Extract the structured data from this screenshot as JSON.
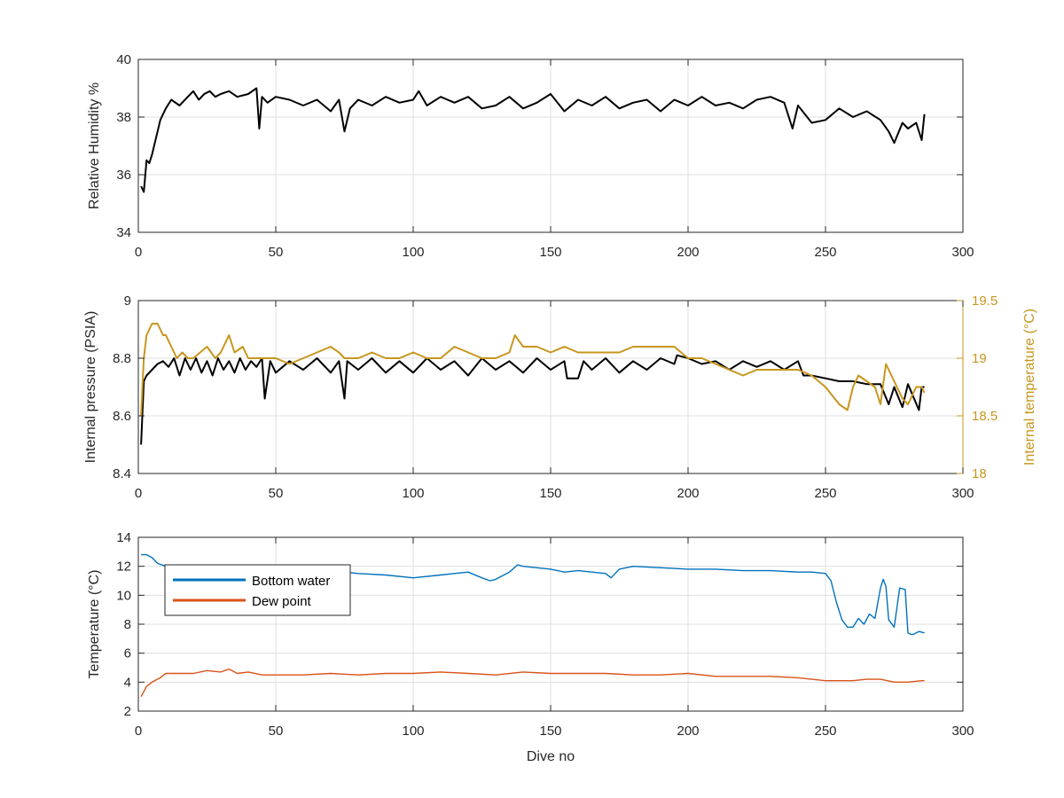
{
  "chart_data": [
    {
      "type": "line",
      "xlabel": "",
      "ylabel": "Relative Humidity %",
      "xlim": [
        0,
        300
      ],
      "ylim": [
        34,
        40
      ],
      "xticks": [
        0,
        50,
        100,
        150,
        200,
        250,
        300
      ],
      "yticks": [
        34,
        36,
        38,
        40
      ],
      "grid": true,
      "series": [
        {
          "color": "#000000",
          "x": [
            1,
            2,
            3,
            4,
            5,
            6,
            7,
            8,
            10,
            12,
            15,
            18,
            20,
            22,
            24,
            26,
            28,
            30,
            33,
            36,
            40,
            43,
            44,
            45,
            47,
            50,
            55,
            60,
            65,
            70,
            73,
            75,
            77,
            80,
            85,
            90,
            95,
            100,
            102,
            105,
            110,
            115,
            120,
            125,
            130,
            135,
            140,
            145,
            150,
            155,
            160,
            165,
            170,
            175,
            180,
            185,
            190,
            195,
            200,
            205,
            210,
            215,
            220,
            225,
            230,
            235,
            238,
            240,
            245,
            250,
            255,
            260,
            265,
            270,
            273,
            275,
            278,
            280,
            283,
            285,
            286
          ],
          "y": [
            35.6,
            35.4,
            36.5,
            36.4,
            36.7,
            37.1,
            37.5,
            37.9,
            38.3,
            38.6,
            38.4,
            38.7,
            38.9,
            38.6,
            38.8,
            38.9,
            38.7,
            38.8,
            38.9,
            38.7,
            38.8,
            39.0,
            37.6,
            38.7,
            38.5,
            38.7,
            38.6,
            38.4,
            38.6,
            38.2,
            38.6,
            37.5,
            38.3,
            38.6,
            38.4,
            38.7,
            38.5,
            38.6,
            38.9,
            38.4,
            38.7,
            38.5,
            38.7,
            38.3,
            38.4,
            38.7,
            38.3,
            38.5,
            38.8,
            38.2,
            38.6,
            38.4,
            38.7,
            38.3,
            38.5,
            38.6,
            38.2,
            38.6,
            38.4,
            38.7,
            38.4,
            38.5,
            38.3,
            38.6,
            38.7,
            38.5,
            37.6,
            38.4,
            37.8,
            37.9,
            38.3,
            38.0,
            38.2,
            37.9,
            37.5,
            37.1,
            37.8,
            37.6,
            37.8,
            37.2,
            38.1
          ]
        }
      ]
    },
    {
      "type": "line",
      "xlabel": "",
      "ylabel": "Internal pressure (PSIA)",
      "y2label": "Internal temperature (°C)",
      "xlim": [
        0,
        300
      ],
      "ylim": [
        8.4,
        9
      ],
      "y2lim": [
        18,
        19.5
      ],
      "xticks": [
        0,
        50,
        100,
        150,
        200,
        250,
        300
      ],
      "yticks": [
        8.4,
        8.6,
        8.8,
        9
      ],
      "y2ticks": [
        18,
        18.5,
        19,
        19.5
      ],
      "y2ticklabels": [
        "18",
        "18.5",
        "19",
        "19.5"
      ],
      "grid": true,
      "series": [
        {
          "axis": "left",
          "color": "#000000",
          "x": [
            1,
            2,
            3,
            5,
            7,
            9,
            11,
            13,
            15,
            17,
            19,
            21,
            23,
            25,
            27,
            29,
            31,
            33,
            35,
            37,
            39,
            41,
            43,
            45,
            46,
            48,
            50,
            55,
            60,
            65,
            70,
            73,
            75,
            76,
            80,
            85,
            90,
            95,
            100,
            105,
            110,
            115,
            120,
            125,
            130,
            135,
            140,
            145,
            150,
            155,
            156,
            160,
            162,
            165,
            170,
            175,
            180,
            185,
            190,
            195,
            196,
            200,
            205,
            210,
            215,
            220,
            225,
            230,
            235,
            240,
            242,
            245,
            250,
            255,
            260,
            265,
            270,
            273,
            275,
            278,
            280,
            284,
            285,
            286
          ],
          "y": [
            8.5,
            8.72,
            8.74,
            8.76,
            8.78,
            8.79,
            8.77,
            8.8,
            8.74,
            8.8,
            8.76,
            8.8,
            8.75,
            8.79,
            8.74,
            8.8,
            8.76,
            8.79,
            8.75,
            8.8,
            8.76,
            8.79,
            8.77,
            8.8,
            8.66,
            8.79,
            8.75,
            8.79,
            8.76,
            8.8,
            8.75,
            8.79,
            8.66,
            8.79,
            8.76,
            8.8,
            8.75,
            8.79,
            8.75,
            8.8,
            8.76,
            8.79,
            8.74,
            8.8,
            8.76,
            8.79,
            8.75,
            8.8,
            8.76,
            8.79,
            8.73,
            8.73,
            8.79,
            8.76,
            8.8,
            8.75,
            8.79,
            8.76,
            8.8,
            8.78,
            8.81,
            8.8,
            8.78,
            8.79,
            8.76,
            8.79,
            8.77,
            8.79,
            8.76,
            8.79,
            8.74,
            8.74,
            8.73,
            8.72,
            8.72,
            8.71,
            8.71,
            8.64,
            8.7,
            8.63,
            8.71,
            8.62,
            8.7,
            8.7
          ]
        },
        {
          "axis": "right",
          "color": "#c8961e",
          "x": [
            1,
            2,
            3,
            5,
            7,
            9,
            10,
            12,
            14,
            16,
            18,
            20,
            25,
            28,
            30,
            33,
            35,
            38,
            40,
            45,
            50,
            55,
            60,
            65,
            70,
            73,
            75,
            80,
            85,
            90,
            95,
            100,
            105,
            110,
            115,
            120,
            125,
            130,
            135,
            137,
            140,
            145,
            150,
            155,
            160,
            165,
            170,
            175,
            180,
            185,
            190,
            195,
            200,
            205,
            210,
            215,
            220,
            225,
            230,
            235,
            240,
            245,
            250,
            255,
            258,
            260,
            262,
            265,
            268,
            270,
            272,
            275,
            278,
            280,
            283,
            285,
            286
          ],
          "y": [
            18.5,
            19.0,
            19.2,
            19.3,
            19.3,
            19.2,
            19.2,
            19.1,
            19.0,
            19.05,
            19.0,
            19.0,
            19.1,
            19.0,
            19.05,
            19.2,
            19.05,
            19.1,
            19.0,
            19.0,
            19.0,
            18.95,
            19.0,
            19.05,
            19.1,
            19.05,
            19.0,
            19.0,
            19.05,
            19.0,
            19.0,
            19.05,
            19.0,
            19.0,
            19.1,
            19.05,
            19.0,
            19.0,
            19.05,
            19.2,
            19.1,
            19.1,
            19.05,
            19.1,
            19.05,
            19.05,
            19.05,
            19.05,
            19.1,
            19.1,
            19.1,
            19.1,
            19.0,
            19.0,
            18.95,
            18.9,
            18.85,
            18.9,
            18.9,
            18.9,
            18.9,
            18.85,
            18.75,
            18.6,
            18.55,
            18.75,
            18.85,
            18.8,
            18.75,
            18.6,
            18.95,
            18.8,
            18.65,
            18.6,
            18.75,
            18.75,
            18.7
          ]
        }
      ]
    },
    {
      "type": "line",
      "xlabel": "Dive no",
      "ylabel": "Temperature (°C)",
      "xlim": [
        0,
        300
      ],
      "ylim": [
        2,
        14
      ],
      "xticks": [
        0,
        50,
        100,
        150,
        200,
        250,
        300
      ],
      "yticks": [
        2,
        4,
        6,
        8,
        10,
        12,
        14
      ],
      "grid": true,
      "legend": "top-left",
      "series": [
        {
          "name": "Bottom water",
          "color": "#0072bd",
          "x": [
            1,
            3,
            5,
            7,
            10,
            15,
            20,
            30,
            40,
            50,
            60,
            70,
            80,
            90,
            100,
            110,
            115,
            120,
            125,
            128,
            130,
            135,
            138,
            140,
            145,
            150,
            155,
            160,
            165,
            170,
            172,
            175,
            180,
            190,
            200,
            210,
            220,
            230,
            240,
            245,
            250,
            252,
            254,
            256,
            258,
            260,
            262,
            264,
            266,
            268,
            270,
            271,
            272,
            273,
            275,
            277,
            279,
            280,
            281,
            282,
            284,
            286
          ],
          "y": [
            12.8,
            12.8,
            12.6,
            12.2,
            12.0,
            11.9,
            11.8,
            11.7,
            11.7,
            11.6,
            11.5,
            11.7,
            11.5,
            11.4,
            11.2,
            11.4,
            11.5,
            11.6,
            11.2,
            11.0,
            11.1,
            11.6,
            12.1,
            12.0,
            11.9,
            11.8,
            11.6,
            11.7,
            11.6,
            11.5,
            11.2,
            11.8,
            12.0,
            11.9,
            11.8,
            11.8,
            11.7,
            11.7,
            11.6,
            11.6,
            11.5,
            11.0,
            9.5,
            8.3,
            7.8,
            7.8,
            8.4,
            8.0,
            8.7,
            8.4,
            10.5,
            11.1,
            10.6,
            8.3,
            7.8,
            10.5,
            10.4,
            7.4,
            7.3,
            7.3,
            7.5,
            7.4
          ]
        },
        {
          "name": "Dew point",
          "color": "#d95319",
          "x": [
            1,
            3,
            5,
            8,
            10,
            15,
            20,
            25,
            30,
            33,
            36,
            40,
            45,
            50,
            60,
            70,
            80,
            90,
            100,
            110,
            120,
            130,
            140,
            150,
            160,
            170,
            180,
            190,
            200,
            210,
            220,
            230,
            240,
            250,
            255,
            260,
            265,
            270,
            275,
            280,
            285,
            286
          ],
          "y": [
            3.0,
            3.7,
            4.0,
            4.3,
            4.6,
            4.6,
            4.6,
            4.8,
            4.7,
            4.9,
            4.6,
            4.7,
            4.5,
            4.5,
            4.5,
            4.6,
            4.5,
            4.6,
            4.6,
            4.7,
            4.6,
            4.5,
            4.7,
            4.6,
            4.6,
            4.6,
            4.5,
            4.5,
            4.6,
            4.4,
            4.4,
            4.4,
            4.3,
            4.1,
            4.1,
            4.1,
            4.2,
            4.2,
            4.0,
            4.0,
            4.1,
            4.1
          ]
        }
      ]
    }
  ]
}
